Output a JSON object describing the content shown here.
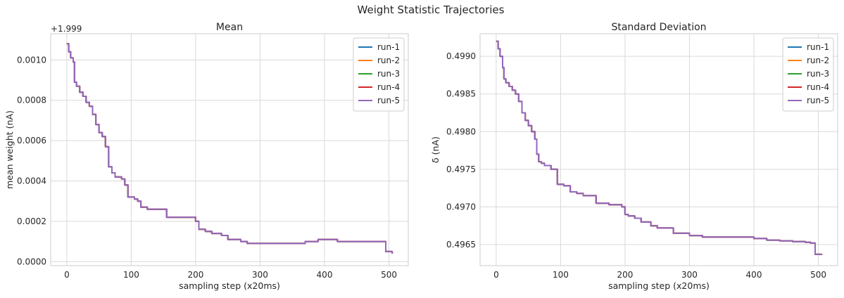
{
  "suptitle": "Weight Statistic Trajectories",
  "chart_data": [
    {
      "type": "line",
      "title": "Mean",
      "xlabel": "sampling step (x20ms)",
      "ylabel": "mean weight (nA)",
      "offset_text": "+1.999",
      "xlim": [
        -25,
        530
      ],
      "ylim": [
        -2e-05,
        0.00113
      ],
      "xticks": [
        0,
        100,
        200,
        300,
        400,
        500
      ],
      "xtick_labels": [
        "0",
        "100",
        "200",
        "300",
        "400",
        "500"
      ],
      "yticks": [
        0.0,
        0.0002,
        0.0004,
        0.0006,
        0.0008,
        0.001
      ],
      "ytick_labels": [
        "0.0000",
        "0.0002",
        "0.0004",
        "0.0006",
        "0.0008",
        "0.0010"
      ],
      "grid": true,
      "legend_position": "top-right",
      "series": [
        {
          "name": "run-1",
          "color": "#1f77b4"
        },
        {
          "name": "run-2",
          "color": "#ff7f0e"
        },
        {
          "name": "run-3",
          "color": "#2ca02c"
        },
        {
          "name": "run-4",
          "color": "#d62728"
        },
        {
          "name": "run-5",
          "color": "#9467bd"
        }
      ],
      "x": [
        0,
        3,
        6,
        10,
        12,
        15,
        20,
        25,
        30,
        35,
        40,
        45,
        50,
        55,
        60,
        65,
        70,
        75,
        85,
        90,
        95,
        105,
        110,
        115,
        125,
        135,
        140,
        155,
        175,
        195,
        200,
        205,
        215,
        225,
        240,
        250,
        265,
        270,
        280,
        290,
        300,
        315,
        325,
        345,
        370,
        390,
        400,
        420,
        440,
        460,
        480,
        488,
        495,
        500,
        505
      ],
      "y": [
        0.00108,
        0.00104,
        0.00101,
        0.00099,
        0.00089,
        0.00087,
        0.00084,
        0.00082,
        0.00079,
        0.00077,
        0.00073,
        0.00068,
        0.00064,
        0.00062,
        0.00057,
        0.00047,
        0.00044,
        0.00042,
        0.00041,
        0.00038,
        0.00032,
        0.00031,
        0.0003,
        0.00027,
        0.00026,
        0.00026,
        0.00026,
        0.00022,
        0.00022,
        0.00022,
        0.0002,
        0.00016,
        0.00015,
        0.00014,
        0.00013,
        0.00011,
        0.00011,
        0.0001,
        9e-05,
        9e-05,
        9e-05,
        9e-05,
        9e-05,
        9e-05,
        0.0001,
        0.00011,
        0.00011,
        0.0001,
        0.0001,
        0.0001,
        0.0001,
        0.0001,
        5e-05,
        5e-05,
        4e-05
      ]
    },
    {
      "type": "line",
      "title": "Standard Deviation",
      "xlabel": "sampling step (x20ms)",
      "ylabel": "δ (nA)",
      "xlim": [
        -25,
        530
      ],
      "ylim": [
        0.49622,
        0.4993
      ],
      "xticks": [
        0,
        100,
        200,
        300,
        400,
        500
      ],
      "xtick_labels": [
        "0",
        "100",
        "200",
        "300",
        "400",
        "500"
      ],
      "yticks": [
        0.4965,
        0.497,
        0.4975,
        0.498,
        0.4985,
        0.499
      ],
      "ytick_labels": [
        "0.4965",
        "0.4970",
        "0.4975",
        "0.4980",
        "0.4985",
        "0.4990"
      ],
      "grid": true,
      "legend_position": "top-right",
      "series": [
        {
          "name": "run-1",
          "color": "#1f77b4"
        },
        {
          "name": "run-2",
          "color": "#ff7f0e"
        },
        {
          "name": "run-3",
          "color": "#2ca02c"
        },
        {
          "name": "run-4",
          "color": "#d62728"
        },
        {
          "name": "run-5",
          "color": "#9467bd"
        }
      ],
      "x": [
        0,
        3,
        6,
        10,
        12,
        15,
        20,
        25,
        30,
        35,
        40,
        45,
        50,
        55,
        60,
        63,
        66,
        70,
        75,
        85,
        95,
        105,
        115,
        125,
        135,
        155,
        175,
        195,
        200,
        205,
        215,
        225,
        240,
        250,
        275,
        300,
        320,
        350,
        375,
        400,
        420,
        440,
        460,
        480,
        488,
        495,
        500,
        505
      ],
      "y": [
        0.4992,
        0.4991,
        0.499,
        0.49885,
        0.4987,
        0.49865,
        0.4986,
        0.49855,
        0.4985,
        0.4984,
        0.49825,
        0.49815,
        0.49808,
        0.498,
        0.4979,
        0.4977,
        0.4976,
        0.49758,
        0.49755,
        0.4975,
        0.4973,
        0.49728,
        0.4972,
        0.49718,
        0.49715,
        0.49705,
        0.49703,
        0.497,
        0.4969,
        0.49688,
        0.49685,
        0.4968,
        0.49675,
        0.49672,
        0.49665,
        0.49662,
        0.4966,
        0.4966,
        0.4966,
        0.49658,
        0.49656,
        0.49655,
        0.49654,
        0.49653,
        0.49652,
        0.49637,
        0.49637,
        0.49636
      ]
    }
  ]
}
